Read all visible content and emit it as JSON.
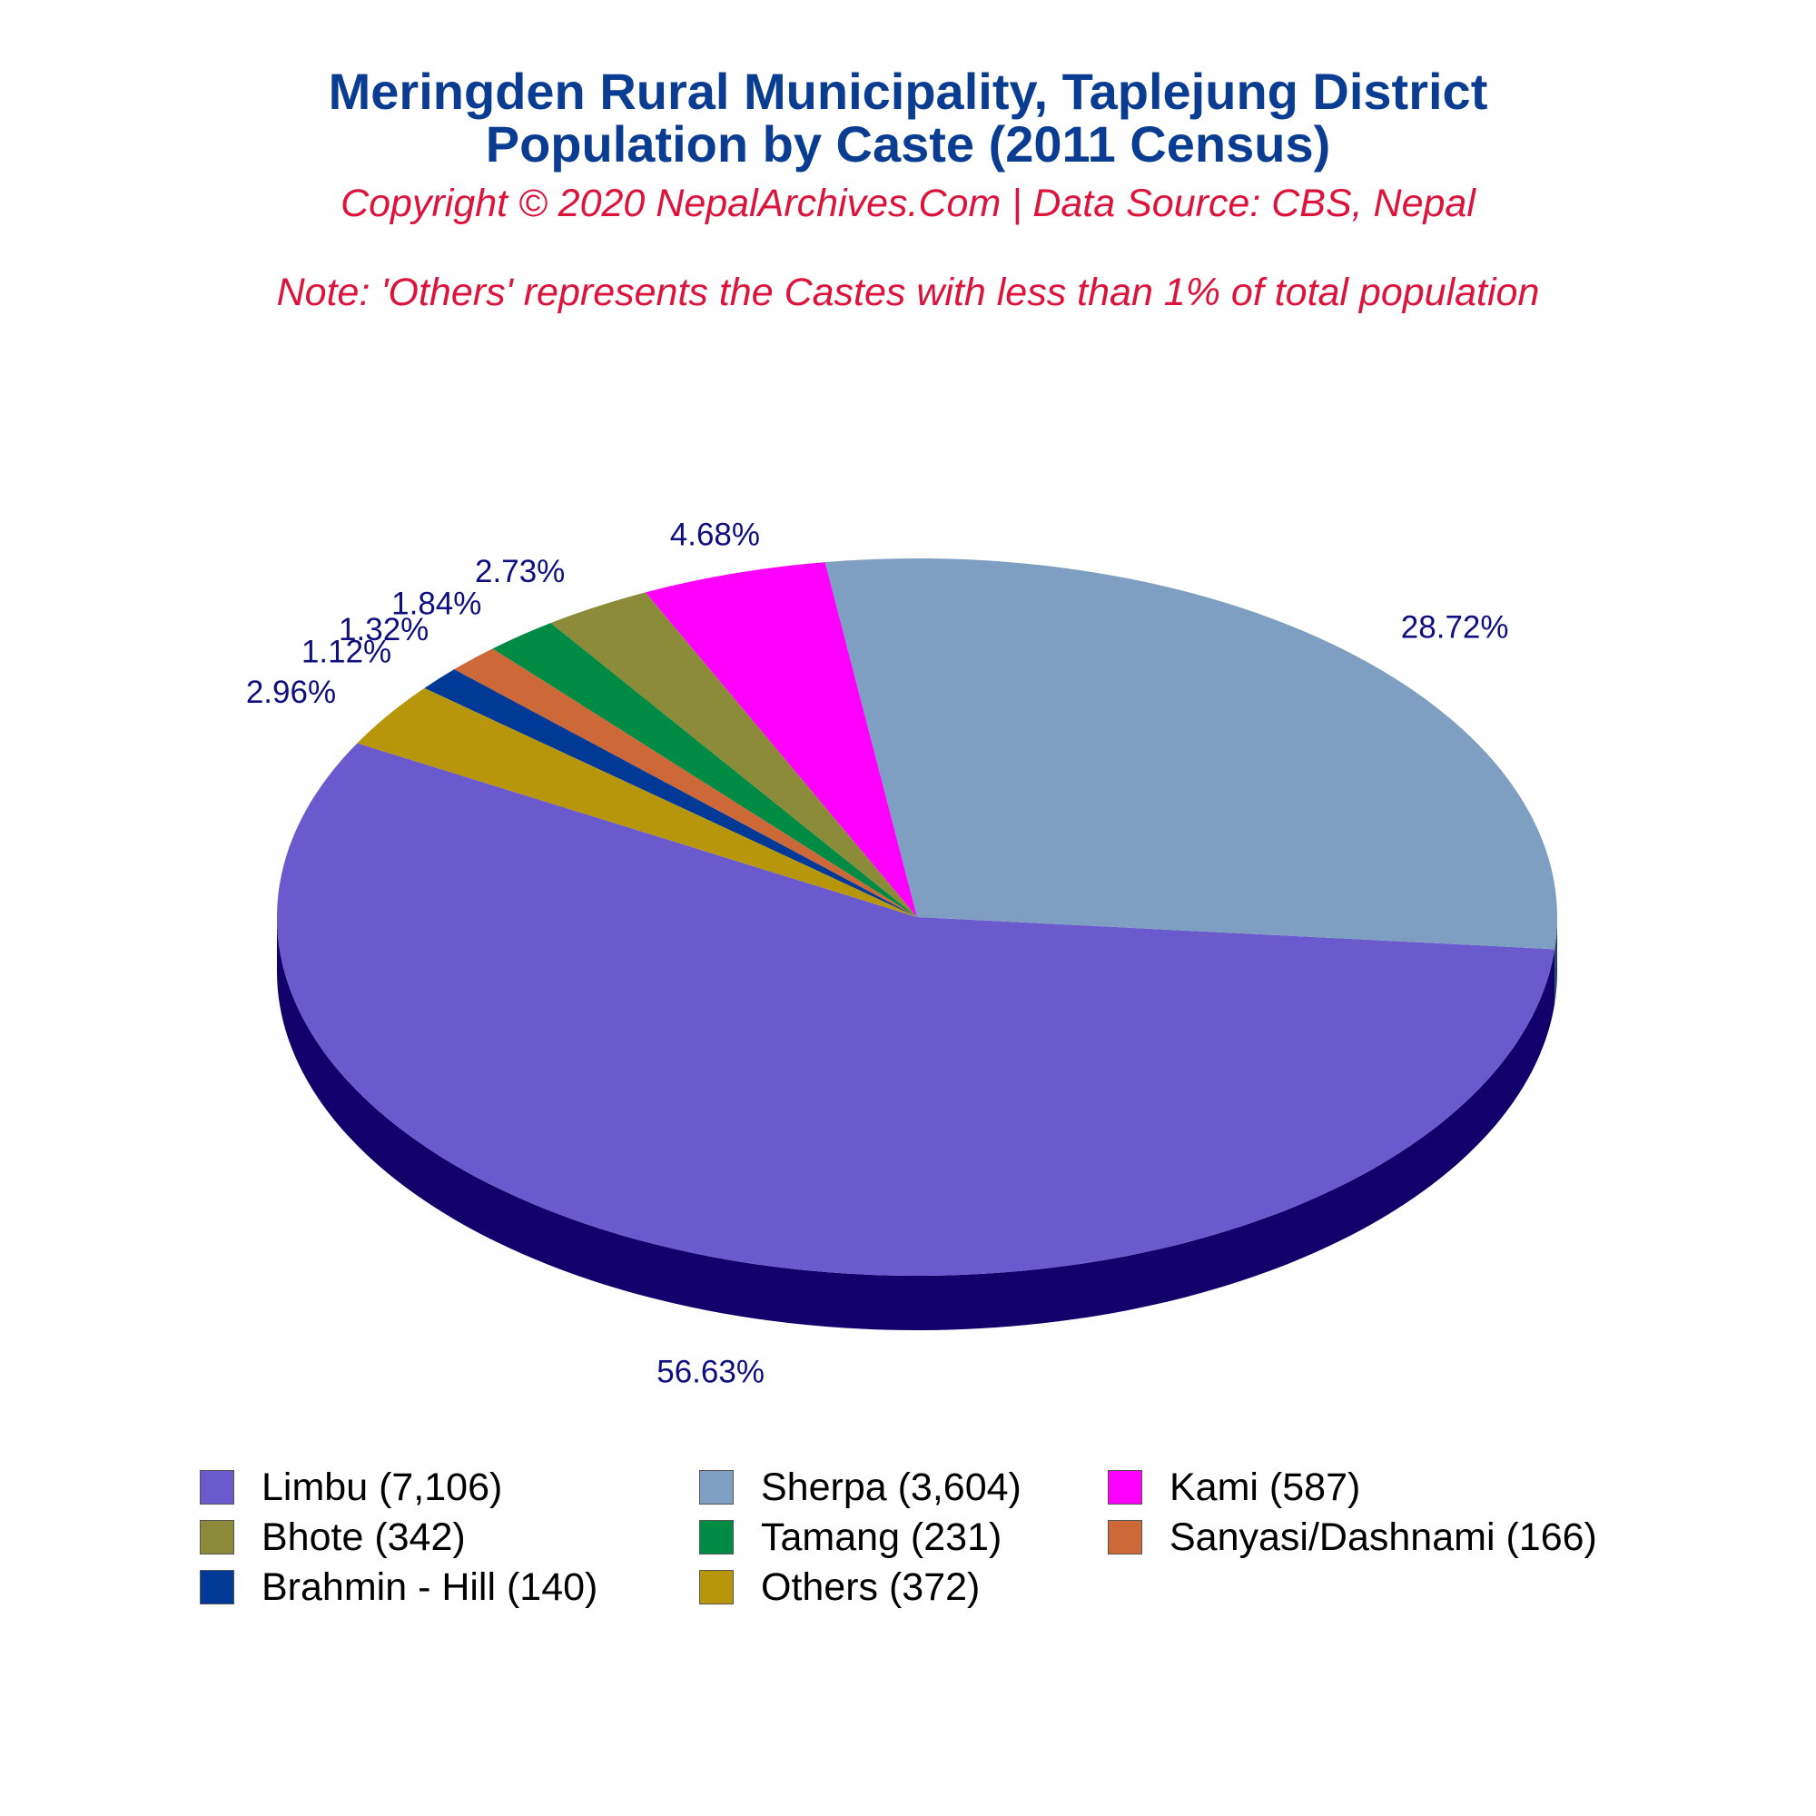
{
  "header": {
    "title_line1": "Meringden Rural Municipality, Taplejung District",
    "title_line2": "Population by Caste (2011 Census)",
    "copyright": "Copyright © 2020 NepalArchives.Com | Data Source: CBS, Nepal",
    "note": "Note: 'Others' represents the Castes with less than 1% of total population"
  },
  "chart_data": {
    "type": "pie",
    "style": "3d",
    "legend_position": "bottom",
    "slices": [
      {
        "label": "Limbu (7,106)",
        "value": 7106,
        "pct_label": "56.63%",
        "color": "#6a5acd",
        "side_color": "#12006b"
      },
      {
        "label": "Sherpa (3,604)",
        "value": 3604,
        "pct_label": "28.72%",
        "color": "#7e9fc1",
        "side_color": "#234466"
      },
      {
        "label": "Kami (587)",
        "value": 587,
        "pct_label": "4.68%",
        "color": "#ff00ff",
        "side_color": "#a000a8"
      },
      {
        "label": "Bhote (342)",
        "value": 342,
        "pct_label": "2.73%",
        "color": "#8b8b3a",
        "side_color": "#4a4a1a"
      },
      {
        "label": "Tamang (231)",
        "value": 231,
        "pct_label": "1.84%",
        "color": "#008b45",
        "side_color": "#004a22"
      },
      {
        "label": "Sanyasi/Dashnami (166)",
        "value": 166,
        "pct_label": "1.32%",
        "color": "#cd6839",
        "side_color": "#7a3a1c"
      },
      {
        "label": "Brahmin - Hill (140)",
        "value": 140,
        "pct_label": "1.12%",
        "color": "#003a96",
        "side_color": "#001a4a"
      },
      {
        "label": "Others (372)",
        "value": 372,
        "pct_label": "2.96%",
        "color": "#b8960b",
        "side_color": "#6a5605"
      }
    ]
  }
}
